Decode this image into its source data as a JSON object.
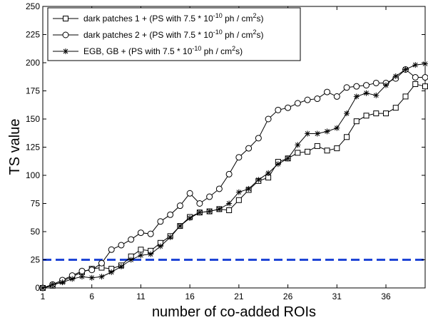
{
  "chart_data": {
    "type": "line",
    "xlabel": "number of co-added ROIs",
    "ylabel": "TS value",
    "xlim": [
      1,
      40
    ],
    "ylim": [
      0,
      250
    ],
    "xticks": [
      1,
      6,
      11,
      16,
      21,
      26,
      31,
      36
    ],
    "yticks": [
      0,
      25,
      50,
      75,
      100,
      125,
      150,
      175,
      200,
      225,
      250
    ],
    "grid": false,
    "legend_position": "top-left",
    "x": [
      1,
      2,
      3,
      4,
      5,
      6,
      7,
      8,
      9,
      10,
      11,
      12,
      13,
      14,
      15,
      16,
      17,
      18,
      19,
      20,
      21,
      22,
      23,
      24,
      25,
      26,
      27,
      28,
      29,
      30,
      31,
      32,
      33,
      34,
      35,
      36,
      37,
      38,
      39,
      40
    ],
    "series": [
      {
        "name": "dark patches 1",
        "legend": {
          "prefix": "dark patches 1 + (PS with 7.5 * 10",
          "exp": "-10",
          "mid": " ph / cm",
          "sup2": "2",
          "suffix": "s)"
        },
        "marker": "square",
        "values": [
          0,
          2,
          6,
          10,
          14,
          17,
          18,
          17,
          20,
          28,
          34,
          33,
          40,
          46,
          55,
          63,
          67,
          68,
          70,
          69,
          78,
          87,
          95,
          98,
          112,
          115,
          120,
          121,
          126,
          122,
          124,
          134,
          148,
          153,
          155,
          155,
          160,
          170,
          181,
          179
        ]
      },
      {
        "name": "dark patches 2",
        "legend": {
          "prefix": "dark patches 2 + (PS with 7.5 * 10",
          "exp": "-10",
          "mid": " ph / cm",
          "sup2": "2",
          "suffix": "s)"
        },
        "marker": "circle",
        "values": [
          0,
          3,
          7,
          11,
          15,
          16,
          22,
          34,
          38,
          43,
          49,
          48,
          59,
          65,
          73,
          84,
          75,
          81,
          88,
          101,
          116,
          124,
          133,
          150,
          158,
          160,
          164,
          167,
          168,
          174,
          170,
          178,
          179,
          180,
          182,
          182,
          186,
          194,
          187,
          187
        ]
      },
      {
        "name": "EGB, GB",
        "legend": {
          "prefix": "EGB, GB + (PS with 7.5 * 10",
          "exp": "-10",
          "mid": " ph / cm",
          "sup2": "2",
          "suffix": "s)"
        },
        "marker": "star",
        "values": [
          0,
          3,
          5,
          8,
          10,
          9,
          10,
          14,
          19,
          25,
          29,
          30,
          37,
          45,
          55,
          62,
          67,
          68,
          70,
          75,
          85,
          88,
          96,
          102,
          110,
          115,
          127,
          137,
          137,
          139,
          142,
          155,
          170,
          173,
          171,
          180,
          188,
          194,
          198,
          199
        ]
      }
    ],
    "reference_line": {
      "y": 25,
      "style": "dashed",
      "color": "#1f45d6"
    }
  }
}
